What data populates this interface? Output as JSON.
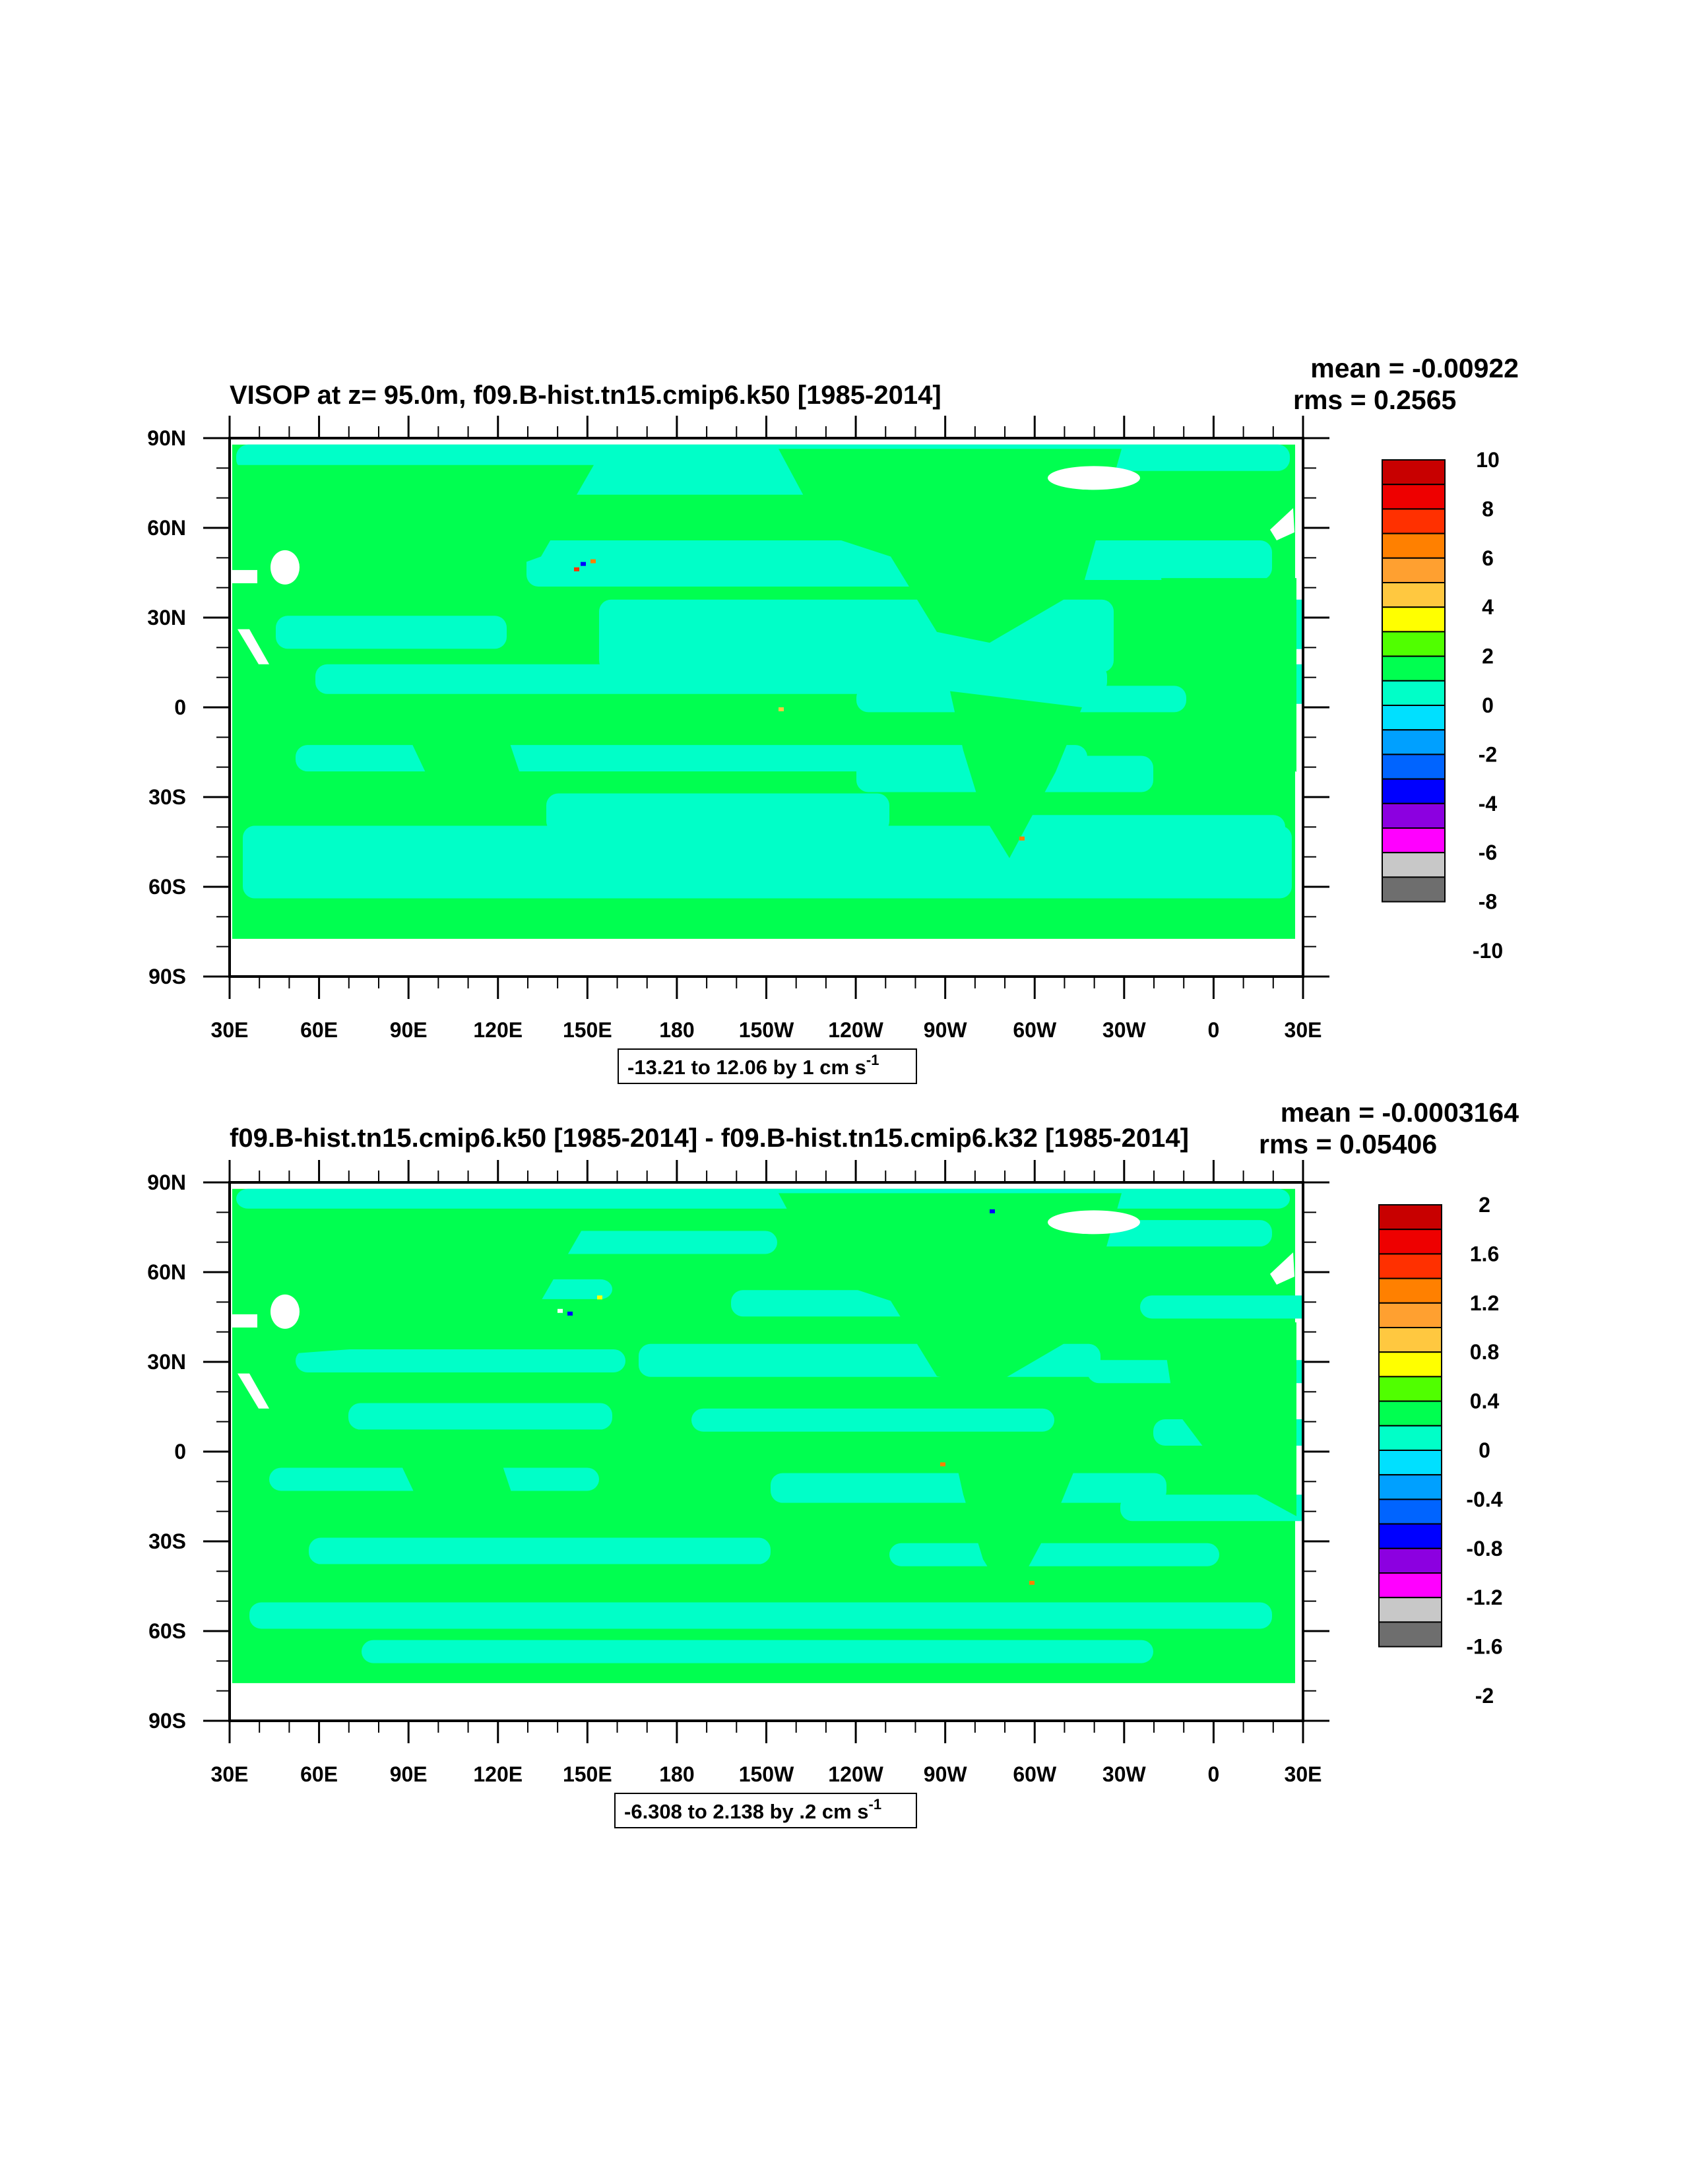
{
  "panels": [
    {
      "title": "VISOP at z=  95.0m, f09.B-hist.tn15.cmip6.k50 [1985-2014]",
      "mean_text": "mean = -0.00922",
      "rms_text": "rms = 0.2565",
      "range_text": "-13.21 to 12.06 by 1 cm s",
      "range_sup": "-1",
      "colorbar_labels": [
        "10",
        "8",
        "6",
        "4",
        "2",
        "0",
        "-2",
        "-4",
        "-6",
        "-8",
        "-10"
      ]
    },
    {
      "title": "f09.B-hist.tn15.cmip6.k50 [1985-2014] - f09.B-hist.tn15.cmip6.k32 [1985-2014]",
      "mean_text": "mean = -0.0003164",
      "rms_text": "rms = 0.05406",
      "range_text": "-6.308 to 2.138 by .2 cm s",
      "range_sup": "-1",
      "colorbar_labels": [
        "2",
        "1.6",
        "1.2",
        "0.8",
        "0.4",
        "0",
        "-0.4",
        "-0.8",
        "-1.2",
        "-1.6",
        "-2"
      ]
    }
  ],
  "lon_labels": [
    "30E",
    "60E",
    "90E",
    "120E",
    "150E",
    "180",
    "150W",
    "120W",
    "90W",
    "60W",
    "30W",
    "0",
    "30E"
  ],
  "lat_labels": [
    "90N",
    "60N",
    "30N",
    "0",
    "30S",
    "60S",
    "90S"
  ],
  "colors": {
    "background_field": "#00ff50",
    "cbar": [
      "#c80000",
      "#ee0000",
      "#ff3000",
      "#ff8000",
      "#ffa030",
      "#ffc040",
      "#ffe000",
      "#ffff00",
      "#50ff00",
      "#00ff50",
      "#00ffc0",
      "#00e0ff",
      "#00a0ff",
      "#0064ff",
      "#0000ff",
      "#8c00e0",
      "#ff00ff",
      "#c8c8c8",
      "#6e6e6e"
    ],
    "cbar_mid": [
      "#c80000",
      "#ee0000",
      "#ff3000",
      "#ff8000",
      "#ffa030",
      "#ffc840",
      "#ffff00",
      "#50ff00",
      "#00ff50",
      "#00ffc8",
      "#00e0ff",
      "#00a0ff",
      "#0064ff",
      "#0000ff",
      "#8c00e0",
      "#ff00ff",
      "#c8c8c8",
      "#6e6e6e"
    ]
  }
}
